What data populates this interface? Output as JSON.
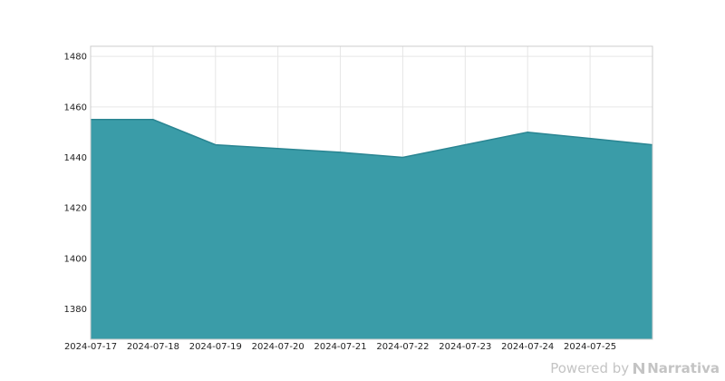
{
  "chart_data": {
    "type": "area",
    "x": [
      "2024-07-17",
      "2024-07-18",
      "2024-07-19",
      "2024-07-20",
      "2024-07-21",
      "2024-07-22",
      "2024-07-23",
      "2024-07-24",
      "2024-07-25",
      "2024-07-26"
    ],
    "x_tick_labels": [
      "2024-07-17",
      "2024-07-18",
      "2024-07-19",
      "2024-07-20",
      "2024-07-21",
      "2024-07-22",
      "2024-07-23",
      "2024-07-24",
      "2024-07-25"
    ],
    "series": [
      {
        "values": [
          1455,
          1455,
          1445,
          1443.5,
          1442,
          1440,
          1445,
          1450,
          1447.5,
          1445
        ]
      }
    ],
    "ylim": [
      1368,
      1484
    ],
    "y_ticks": [
      1380,
      1400,
      1420,
      1440,
      1460,
      1480
    ],
    "title": "",
    "xlabel": "",
    "ylabel": "",
    "grid": true,
    "colors": {
      "fill": "#3a9ca8",
      "line": "#2a8592",
      "grid": "#e6e6e6",
      "frame": "#cccccc"
    }
  },
  "watermark": {
    "powered_by": "Powered by",
    "brand": "Narrativa"
  }
}
